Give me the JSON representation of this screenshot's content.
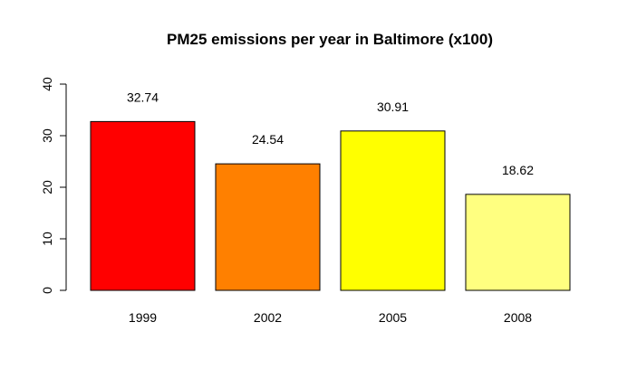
{
  "chart_data": {
    "type": "bar",
    "title": "PM25 emissions per year in Baltimore (x100)",
    "xlabel": "",
    "ylabel": "",
    "categories": [
      "1999",
      "2002",
      "2005",
      "2008"
    ],
    "values": [
      32.74,
      24.54,
      30.91,
      18.62
    ],
    "data_labels": [
      "32.74",
      "24.54",
      "30.91",
      "18.62"
    ],
    "colors": [
      "#FF0000",
      "#FF8000",
      "#FFFF00",
      "#FFFF80"
    ],
    "ylim": [
      0,
      40
    ],
    "yticks": [
      0,
      10,
      20,
      30,
      40
    ],
    "ytick_labels": [
      "0",
      "10",
      "20",
      "30",
      "40"
    ],
    "grid": false,
    "legend": "none"
  }
}
